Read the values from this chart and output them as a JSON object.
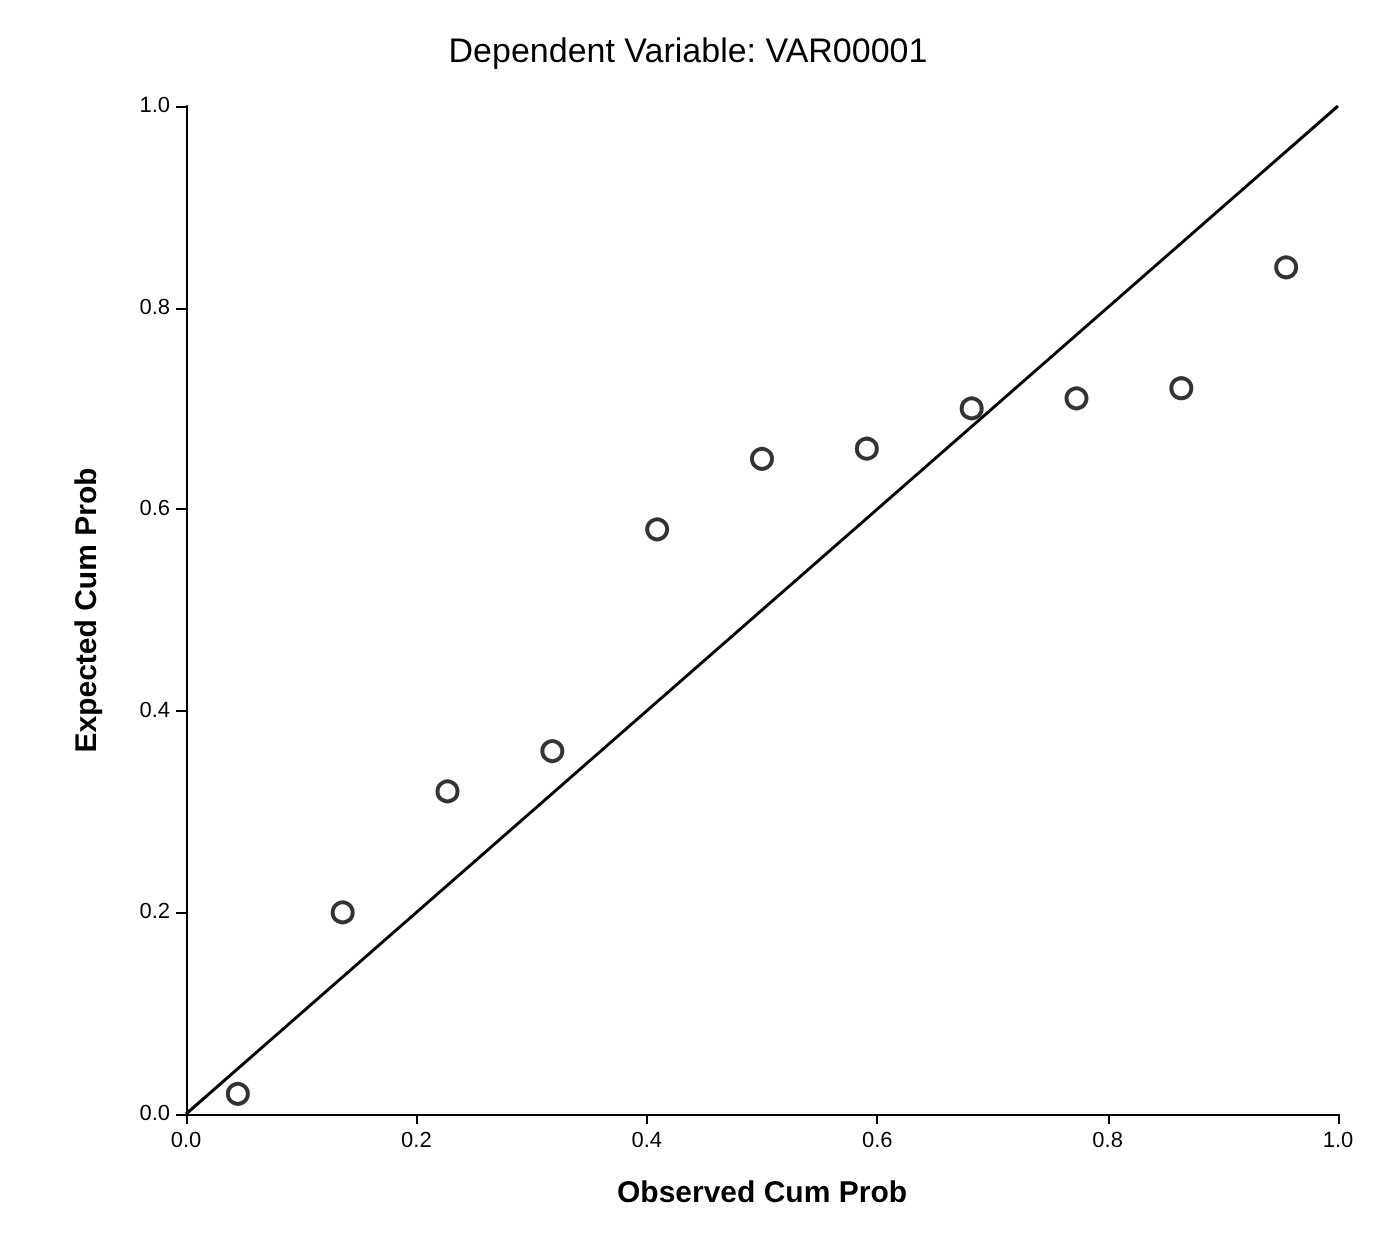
{
  "chart_data": {
    "type": "scatter",
    "title": "Dependent Variable: VAR00001",
    "xlabel": "Observed Cum Prob",
    "ylabel": "Expected Cum Prob",
    "xlim": [
      0,
      1
    ],
    "ylim": [
      0,
      1
    ],
    "xticks": [
      {
        "value": 0,
        "label": "0.0"
      },
      {
        "value": 0.2,
        "label": "0.2"
      },
      {
        "value": 0.4,
        "label": "0.4"
      },
      {
        "value": 0.6,
        "label": "0.6"
      },
      {
        "value": 0.8,
        "label": "0.8"
      },
      {
        "value": 1,
        "label": "1.0"
      }
    ],
    "yticks": [
      {
        "value": 0,
        "label": "0.0"
      },
      {
        "value": 0.2,
        "label": "0.2"
      },
      {
        "value": 0.4,
        "label": "0.4"
      },
      {
        "value": 0.6,
        "label": "0.6"
      },
      {
        "value": 0.8,
        "label": "0.8"
      },
      {
        "value": 1,
        "label": "1.0"
      }
    ],
    "grid": false,
    "series": [
      {
        "type": "scatter",
        "marker": "circle",
        "color": "#000000",
        "x": [
          0.045,
          0.136,
          0.227,
          0.318,
          0.409,
          0.5,
          0.591,
          0.682,
          0.773,
          0.864,
          0.955
        ],
        "values": [
          0.02,
          0.2,
          0.32,
          0.36,
          0.58,
          0.65,
          0.66,
          0.7,
          0.71,
          0.72,
          0.84
        ]
      },
      {
        "type": "line",
        "marker": "none",
        "color": "#000000",
        "x": [
          0,
          1
        ],
        "values": [
          0,
          1
        ]
      }
    ]
  }
}
